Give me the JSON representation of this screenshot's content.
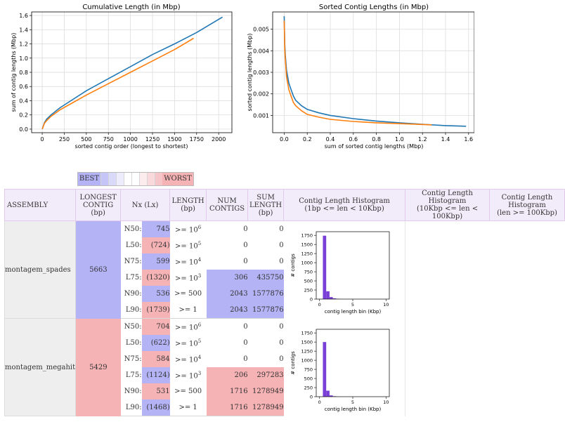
{
  "plots": [
    {
      "title": "Cumulative Length (in Mbp)",
      "xlabel": "sorted contig order (longest to shortest)",
      "ylabel": "sum of contig lengths (Mbp)",
      "xlim": [
        -120,
        2150
      ],
      "ylim": [
        -0.05,
        1.65
      ],
      "xticks": [
        0,
        250,
        500,
        750,
        1000,
        1250,
        1500,
        1750,
        2000
      ],
      "yticks": [
        "0.0",
        "0.2",
        "0.4",
        "0.6",
        "0.8",
        "1.0",
        "1.2",
        "1.4",
        "1.6"
      ]
    },
    {
      "title": "Sorted Contig Lengths (in Mbp)",
      "xlabel": "sum of sorted contig lengths (Mbp)",
      "ylabel": "sorted contig lengths (Mbp)",
      "xlim": [
        -0.1,
        1.65
      ],
      "ylim": [
        0.0002,
        0.0058
      ],
      "xticks": [
        "0.0",
        "0.2",
        "0.4",
        "0.6",
        "0.8",
        "1.0",
        "1.2",
        "1.4",
        "1.6"
      ],
      "yticks": [
        "0.001",
        "0.002",
        "0.003",
        "0.004",
        "0.005"
      ]
    }
  ],
  "chart_data": [
    {
      "type": "line",
      "title": "Cumulative Length (in Mbp)",
      "xlabel": "sorted contig order (longest to shortest)",
      "ylabel": "sum of contig lengths (Mbp)",
      "xlim": [
        -120,
        2150
      ],
      "ylim": [
        -0.05,
        1.65
      ],
      "grid": true,
      "series": [
        {
          "name": "montagem_spades",
          "color": "#1f77b4",
          "x": [
            0,
            25,
            50,
            100,
            200,
            300,
            500,
            750,
            1000,
            1250,
            1500,
            1750,
            2043
          ],
          "y": [
            0,
            0.09,
            0.14,
            0.2,
            0.3,
            0.38,
            0.54,
            0.71,
            0.88,
            1.05,
            1.2,
            1.36,
            1.578
          ]
        },
        {
          "name": "montagem_megahit",
          "color": "#ff7f0e",
          "x": [
            0,
            25,
            50,
            100,
            200,
            300,
            500,
            750,
            1000,
            1250,
            1500,
            1716
          ],
          "y": [
            0,
            0.08,
            0.12,
            0.18,
            0.27,
            0.34,
            0.48,
            0.64,
            0.8,
            0.96,
            1.12,
            1.279
          ]
        }
      ]
    },
    {
      "type": "line",
      "title": "Sorted Contig Lengths (in Mbp)",
      "xlabel": "sum of sorted contig lengths (Mbp)",
      "ylabel": "sorted contig lengths (Mbp)",
      "xlim": [
        -0.1,
        1.65
      ],
      "ylim": [
        0.0002,
        0.0058
      ],
      "grid": true,
      "series": [
        {
          "name": "montagem_spades",
          "color": "#1f77b4",
          "x": [
            0,
            0.005,
            0.01,
            0.02,
            0.04,
            0.06,
            0.08,
            0.1,
            0.15,
            0.2,
            0.3,
            0.4,
            0.6,
            0.8,
            1.0,
            1.2,
            1.4,
            1.578
          ],
          "y": [
            0.0056,
            0.0043,
            0.0038,
            0.0031,
            0.0025,
            0.0022,
            0.0019,
            0.0017,
            0.00145,
            0.00128,
            0.00112,
            0.001,
            0.00085,
            0.00074,
            0.00066,
            0.00059,
            0.00053,
            0.0005
          ]
        },
        {
          "name": "montagem_megahit",
          "color": "#ff7f0e",
          "x": [
            0,
            0.005,
            0.01,
            0.02,
            0.04,
            0.06,
            0.08,
            0.1,
            0.15,
            0.2,
            0.3,
            0.4,
            0.6,
            0.8,
            1.0,
            1.2,
            1.279
          ],
          "y": [
            0.0054,
            0.0041,
            0.0036,
            0.0028,
            0.0022,
            0.0019,
            0.0016,
            0.00145,
            0.00122,
            0.00105,
            0.00092,
            0.00082,
            0.00072,
            0.00066,
            0.00062,
            0.00058,
            0.00056
          ]
        }
      ]
    },
    {
      "type": "bar",
      "title": "",
      "xlabel": "contig length bin (Kbp)",
      "ylabel": "# contigs",
      "xlim": [
        -0.5,
        10.5
      ],
      "ylim": [
        0,
        1850
      ],
      "xticks": [
        "0",
        "5",
        "10"
      ],
      "yticks": [
        "0",
        "250",
        "500",
        "750",
        "1000",
        "1250",
        "1500",
        "1750"
      ],
      "color": "#7a3fd6",
      "bins": [
        [
          0.5,
          1.0,
          1740
        ],
        [
          1.0,
          1.5,
          215
        ],
        [
          1.5,
          2.0,
          55
        ],
        [
          2.0,
          2.5,
          20
        ],
        [
          2.5,
          3.0,
          8
        ]
      ]
    },
    {
      "type": "bar",
      "title": "",
      "xlabel": "contig length bin (Kbp)",
      "ylabel": "# contigs",
      "xlim": [
        -0.5,
        10.5
      ],
      "ylim": [
        0,
        1850
      ],
      "xticks": [
        "0",
        "5",
        "10"
      ],
      "yticks": [
        "0",
        "250",
        "500",
        "750",
        "1000",
        "1250",
        "1500",
        "1750"
      ],
      "color": "#7a3fd6",
      "bins": [
        [
          0.5,
          1.0,
          1500
        ],
        [
          1.0,
          1.5,
          165
        ],
        [
          1.5,
          2.0,
          35
        ],
        [
          2.0,
          2.5,
          12
        ],
        [
          2.5,
          3.0,
          4
        ]
      ]
    }
  ],
  "legend": {
    "best": "BEST",
    "worst": "WORST",
    "swatches": [
      "#c5c5f7",
      "#d9d9f9",
      "#ececfc",
      "#ffffff",
      "#ffffff",
      "#fcecee",
      "#f9d9db",
      "#f6c5c8"
    ]
  },
  "table": {
    "headers": {
      "assembly": "ASSEMBLY",
      "longest": [
        "LONGEST",
        "CONTIG",
        "(bp)"
      ],
      "nx": "Nx (Lx)",
      "length": [
        "LENGTH",
        "(bp)"
      ],
      "num": [
        "NUM",
        "CONTIGS"
      ],
      "sum": [
        "SUM",
        "LENGTH",
        "(bp)"
      ],
      "hist1": [
        "Contig Length Histogram",
        "(1bp <= len < 10Kbp)"
      ],
      "hist2": [
        "Contig Length Histogram",
        "(10Kbp <= len < 100Kbp)"
      ],
      "hist3": [
        "Contig Length Histogram",
        "(len >= 100Kbp)"
      ]
    },
    "rows": [
      {
        "assembly": "montagem_spades",
        "longest": "5663",
        "nx": [
          [
            "N50:",
            "745"
          ],
          [
            "L50:",
            "(724)"
          ],
          [
            "N75:",
            "599"
          ],
          [
            "L75:",
            "(1320)"
          ],
          [
            "N90:",
            "536"
          ],
          [
            "L90:",
            "(1739)"
          ]
        ],
        "length": [
          [
            ">= 10",
            "6"
          ],
          [
            ">= 10",
            "5"
          ],
          [
            ">= 10",
            "4"
          ],
          [
            ">= 10",
            "3"
          ],
          [
            ">= 500",
            ""
          ],
          [
            ">= 1",
            ""
          ]
        ],
        "num": [
          "0",
          "0",
          "0",
          "306",
          "2043",
          "2043"
        ],
        "sum": [
          "0",
          "0",
          "0",
          "435750",
          "1577876",
          "1577876"
        ]
      },
      {
        "assembly": "montagem_megahit",
        "longest": "5429",
        "nx": [
          [
            "N50:",
            "704"
          ],
          [
            "L50:",
            "(622)"
          ],
          [
            "N75:",
            "584"
          ],
          [
            "L75:",
            "(1124)"
          ],
          [
            "N90:",
            "531"
          ],
          [
            "L90:",
            "(1468)"
          ]
        ],
        "length": [
          [
            ">= 10",
            "6"
          ],
          [
            ">= 10",
            "5"
          ],
          [
            ">= 10",
            "4"
          ],
          [
            ">= 10",
            "3"
          ],
          [
            ">= 500",
            ""
          ],
          [
            ">= 1",
            ""
          ]
        ],
        "num": [
          "0",
          "0",
          "0",
          "206",
          "1716",
          "1716"
        ],
        "sum": [
          "0",
          "0",
          "0",
          "297283",
          "1278949",
          "1278949"
        ]
      }
    ]
  }
}
